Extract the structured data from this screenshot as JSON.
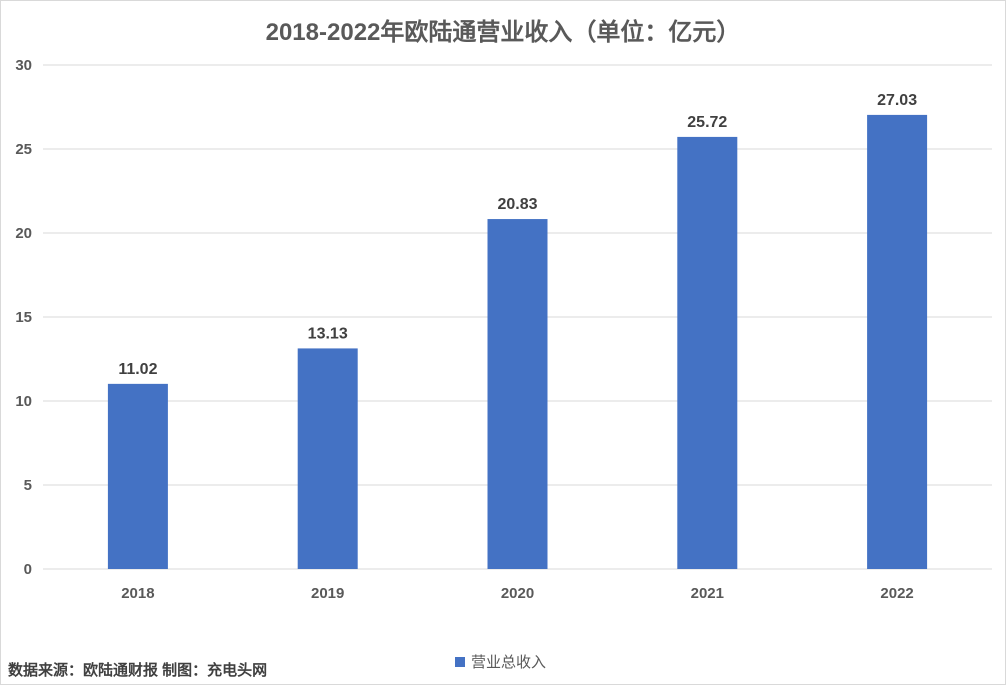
{
  "chart_data": {
    "type": "bar",
    "title": "2018-2022年欧陆通营业收入（单位：亿元）",
    "categories": [
      "2018",
      "2019",
      "2020",
      "2021",
      "2022"
    ],
    "series": [
      {
        "name": "营业总收入",
        "values": [
          11.02,
          13.13,
          20.83,
          25.72,
          27.03
        ]
      }
    ],
    "data_labels": [
      "11.02",
      "13.13",
      "20.83",
      "25.72",
      "27.03"
    ],
    "ylim": [
      0,
      30
    ],
    "yticks": [
      "0",
      "5",
      "10",
      "15",
      "20",
      "25",
      "30"
    ],
    "xlabel": "",
    "ylabel": "",
    "grid": true,
    "legend_position": "bottom",
    "colors": {
      "bar": "#4472c4",
      "grid": "#d9d9d9",
      "text": "#595959"
    }
  },
  "footer": {
    "source": "数据来源：欧陆通财报 制图：充电头网"
  }
}
